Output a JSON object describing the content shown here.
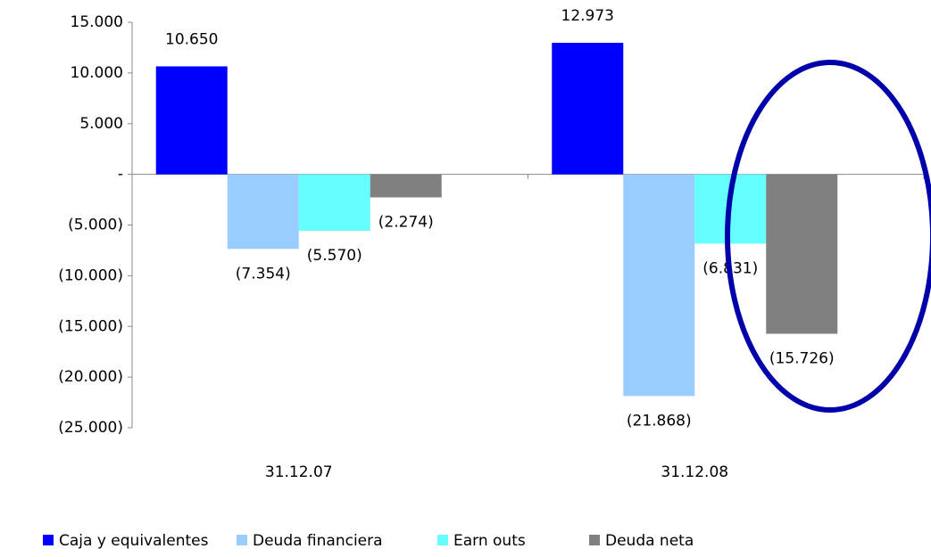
{
  "chart_data": {
    "type": "bar",
    "categories": [
      "31.12.07",
      "31.12.08"
    ],
    "series": [
      {
        "name": "Caja y equivalentes",
        "color": "#0000ff",
        "values": [
          10650,
          12973
        ],
        "value_labels": [
          "10.650",
          "12.973"
        ]
      },
      {
        "name": "Deuda financiera",
        "color": "#99ccff",
        "values": [
          -7354,
          -21868
        ],
        "value_labels": [
          "(7.354)",
          "(21.868)"
        ]
      },
      {
        "name": "Earn outs",
        "color": "#66ffff",
        "values": [
          -5570,
          -6831
        ],
        "value_labels": [
          "(5.570)",
          "(6.831)"
        ]
      },
      {
        "name": "Deuda neta",
        "color": "#808080",
        "values": [
          -2274,
          -15726
        ],
        "value_labels": [
          "(2.274)",
          "(15.726)"
        ]
      }
    ],
    "ylim": [
      -25000,
      15000
    ],
    "yticks": [
      {
        "value": 15000,
        "label": "15.000"
      },
      {
        "value": 10000,
        "label": "10.000"
      },
      {
        "value": 5000,
        "label": "5.000"
      },
      {
        "value": 0,
        "label": "-"
      },
      {
        "value": -5000,
        "label": "(5.000)"
      },
      {
        "value": -10000,
        "label": "(10.000)"
      },
      {
        "value": -15000,
        "label": "(15.000)"
      },
      {
        "value": -20000,
        "label": "(20.000)"
      },
      {
        "value": -25000,
        "label": "(25.000)"
      }
    ],
    "legend": "bottom"
  }
}
